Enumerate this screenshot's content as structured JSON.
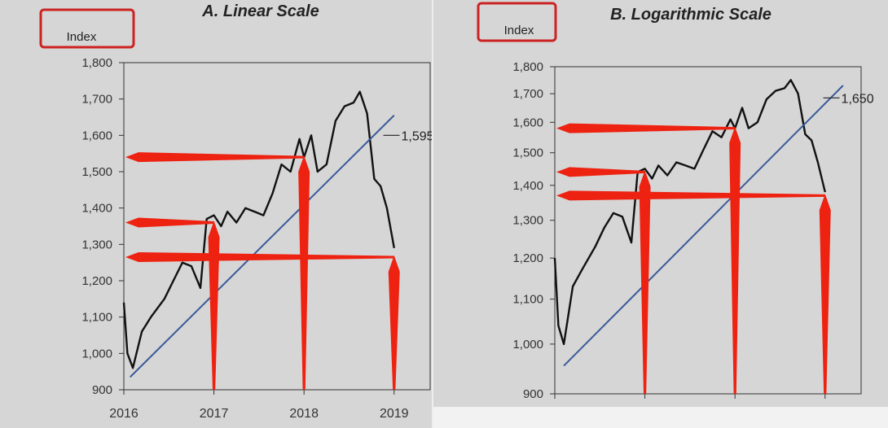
{
  "chart_data": [
    {
      "type": "line",
      "title": "A. Linear Scale",
      "ylabel": "Index",
      "scale": "linear",
      "ylim": [
        900,
        1800
      ],
      "xlim": [
        2016,
        2019.4
      ],
      "yticks": [
        900,
        1000,
        1100,
        1200,
        1300,
        1400,
        1500,
        1600,
        1700,
        1800
      ],
      "ytick_labels": [
        "900",
        "1,000",
        "1,100",
        "1,200",
        "1,300",
        "1,400",
        "1,500",
        "1,600",
        "1,700",
        "1,800"
      ],
      "xticks": [
        2016,
        2017,
        2018,
        2019
      ],
      "xtick_labels": [
        "2016",
        "2017",
        "2018",
        "2019"
      ],
      "series": [
        {
          "x": [
            2016.0,
            2016.04,
            2016.1,
            2016.2,
            2016.3,
            2016.45,
            2016.55,
            2016.65,
            2016.75,
            2016.85,
            2016.92,
            2017.0,
            2017.08,
            2017.15,
            2017.25,
            2017.35,
            2017.45,
            2017.55,
            2017.65,
            2017.75,
            2017.85,
            2017.95,
            2018.0,
            2018.08,
            2018.15,
            2018.25,
            2018.35,
            2018.45,
            2018.55,
            2018.62,
            2018.7,
            2018.78,
            2018.85,
            2018.92,
            2019.0
          ],
          "y": [
            1140,
            1000,
            960,
            1060,
            1100,
            1150,
            1200,
            1250,
            1240,
            1180,
            1370,
            1380,
            1350,
            1390,
            1360,
            1400,
            1390,
            1380,
            1440,
            1520,
            1500,
            1590,
            1540,
            1600,
            1500,
            1520,
            1640,
            1680,
            1690,
            1720,
            1660,
            1480,
            1460,
            1400,
            1290
          ]
        },
        {
          "name": "trend",
          "x": [
            2016.07,
            2019.0
          ],
          "y": [
            935,
            1655
          ]
        }
      ],
      "annotations": [
        {
          "text": "1,595",
          "x": 2018.88,
          "y": 1600
        }
      ],
      "arrows": [
        {
          "x": 2017.0,
          "y": 1360
        },
        {
          "x": 2018.0,
          "y": 1540
        },
        {
          "x": 2019.0,
          "y": 1265
        }
      ]
    },
    {
      "type": "line",
      "title": "B. Logarithmic Scale",
      "ylabel": "Index",
      "scale": "log",
      "ylim": [
        900,
        1800
      ],
      "xlim": [
        2016,
        2019.4
      ],
      "yticks": [
        900,
        1000,
        1100,
        1200,
        1300,
        1400,
        1500,
        1600,
        1700,
        1800
      ],
      "ytick_labels": [
        "900",
        "1,000",
        "1,100",
        "1,200",
        "1,300",
        "1,400",
        "1,500",
        "1,600",
        "1,700",
        "1,800"
      ],
      "xticks": [
        2016,
        2017,
        2018,
        2019
      ],
      "xtick_labels": [
        "",
        "",
        "",
        ""
      ],
      "series": [
        {
          "x": [
            2016.0,
            2016.04,
            2016.1,
            2016.2,
            2016.3,
            2016.45,
            2016.55,
            2016.65,
            2016.75,
            2016.85,
            2016.92,
            2017.0,
            2017.08,
            2017.15,
            2017.25,
            2017.35,
            2017.45,
            2017.55,
            2017.65,
            2017.75,
            2017.85,
            2017.95,
            2018.0,
            2018.08,
            2018.15,
            2018.25,
            2018.35,
            2018.45,
            2018.55,
            2018.62,
            2018.7,
            2018.78,
            2018.85,
            2018.92,
            2019.0
          ],
          "y": [
            1200,
            1040,
            1000,
            1130,
            1170,
            1230,
            1280,
            1320,
            1310,
            1240,
            1440,
            1450,
            1420,
            1460,
            1430,
            1470,
            1460,
            1450,
            1510,
            1570,
            1550,
            1610,
            1580,
            1650,
            1580,
            1600,
            1680,
            1710,
            1720,
            1750,
            1700,
            1560,
            1540,
            1470,
            1380
          ]
        },
        {
          "name": "trend",
          "x": [
            2016.1,
            2019.2
          ],
          "y": [
            955,
            1730
          ]
        }
      ],
      "annotations": [
        {
          "text": "1,650",
          "x": 2018.98,
          "y": 1685
        }
      ],
      "arrows": [
        {
          "x": 2017.0,
          "y": 1440
        },
        {
          "x": 2018.0,
          "y": 1580
        },
        {
          "x": 2019.0,
          "y": 1370
        }
      ]
    }
  ]
}
